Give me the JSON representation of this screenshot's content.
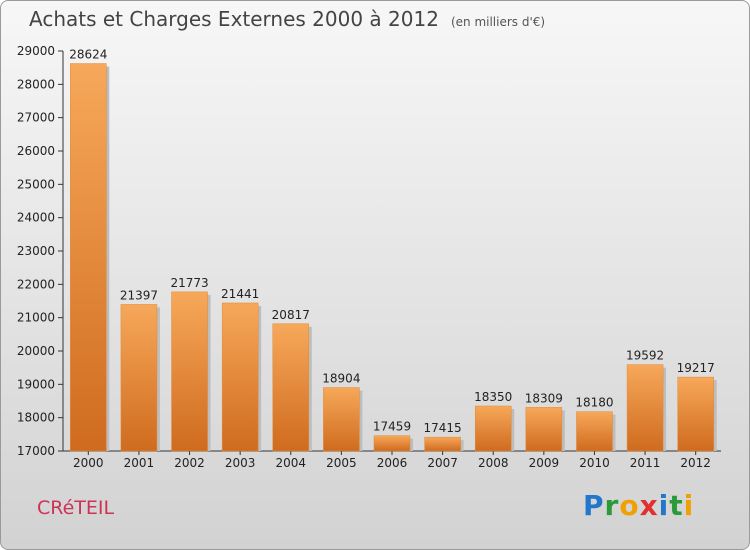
{
  "title": "Achats et Charges Externes 2000 à 2012",
  "subtitle": "(en milliers d'€)",
  "city": "CRéTEIL",
  "logo": {
    "text": "Proxiti",
    "letters": [
      {
        "ch": "P",
        "color": "#2277cc"
      },
      {
        "ch": "r",
        "color": "#2a9a3a"
      },
      {
        "ch": "o",
        "color": "#f0a000"
      },
      {
        "ch": "x",
        "color": "#e03030"
      },
      {
        "ch": "i",
        "color": "#2277cc"
      },
      {
        "ch": "t",
        "color": "#2a9a3a"
      },
      {
        "ch": "i",
        "color": "#f0a000"
      }
    ]
  },
  "colors": {
    "bar_light": "#f7a85a",
    "bar_dark": "#cf6b1e",
    "grid": "#222222"
  },
  "chart_data": {
    "type": "bar",
    "categories": [
      "2000",
      "2001",
      "2002",
      "2003",
      "2004",
      "2005",
      "2006",
      "2007",
      "2008",
      "2009",
      "2010",
      "2011",
      "2012"
    ],
    "values": [
      28624,
      21397,
      21773,
      21441,
      20817,
      18904,
      17459,
      17415,
      18350,
      18309,
      18180,
      19592,
      19217
    ],
    "ylim": [
      17000,
      29000
    ],
    "yticks": [
      17000,
      18000,
      19000,
      20000,
      21000,
      22000,
      23000,
      24000,
      25000,
      26000,
      27000,
      28000,
      29000
    ],
    "grid": false,
    "data_labels": true
  }
}
